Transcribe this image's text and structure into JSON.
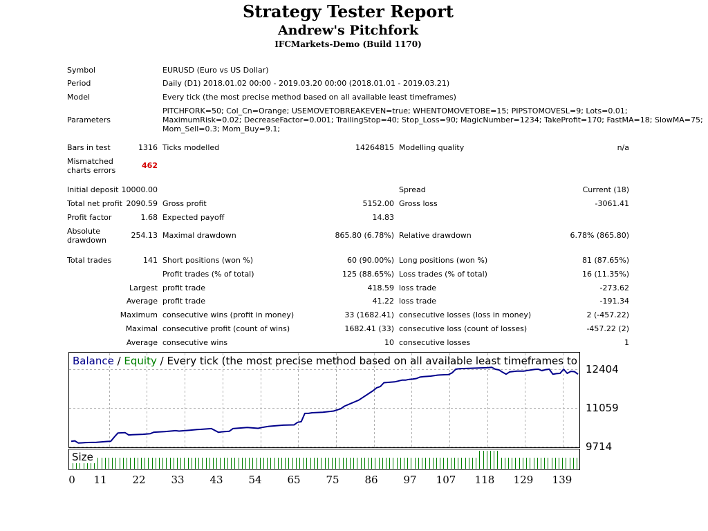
{
  "header": {
    "title": "Strategy Tester Report",
    "subtitle": "Andrew's Pitchfork",
    "server": "IFCMarkets-Demo (Build 1170)"
  },
  "info": {
    "symbol_label": "Symbol",
    "symbol_value": "EURUSD (Euro vs US Dollar)",
    "period_label": "Period",
    "period_value": "Daily (D1) 2018.01.02 00:00 - 2019.03.20 00:00 (2018.01.01 - 2019.03.21)",
    "model_label": "Model",
    "model_value": "Every tick (the most precise method based on all available least timeframes)",
    "parameters_label": "Parameters",
    "parameters_lines": [
      "PITCHFORK=50; Col_Cn=Orange; USEMOVETOBREAKEVEN=true; WHENTOMOVETOBE=15; PIPSTOMOVESL=9; Lots=0.01;",
      "MaximumRisk=0.02; DecreaseFactor=0.001; TrailingStop=40; Stop_Loss=90; MagicNumber=1234; TakeProfit=170; FastMA=18; SlowMA=75;",
      "Mom_Sell=0.3; Mom_Buy=9.1;"
    ]
  },
  "stats": {
    "bars_in_test_label": "Bars in test",
    "bars_in_test": "1316",
    "ticks_modelled_label": "Ticks modelled",
    "ticks_modelled": "14264815",
    "modelling_quality_label": "Modelling quality",
    "modelling_quality": "n/a",
    "mismatched_label_1": "Mismatched",
    "mismatched_label_2": "charts errors",
    "mismatched": "462",
    "initial_deposit_label": "Initial deposit",
    "initial_deposit": "10000.00",
    "spread_label": "Spread",
    "spread": "Current (18)",
    "total_net_profit_label": "Total net profit",
    "total_net_profit": "2090.59",
    "gross_profit_label": "Gross profit",
    "gross_profit": "5152.00",
    "gross_loss_label": "Gross loss",
    "gross_loss": "-3061.41",
    "profit_factor_label": "Profit factor",
    "profit_factor": "1.68",
    "expected_payoff_label": "Expected payoff",
    "expected_payoff": "14.83",
    "absolute_drawdown_label_1": "Absolute",
    "absolute_drawdown_label_2": "drawdown",
    "absolute_drawdown": "254.13",
    "maximal_drawdown_label": "Maximal drawdown",
    "maximal_drawdown": "865.80 (6.78%)",
    "relative_drawdown_label": "Relative drawdown",
    "relative_drawdown": "6.78% (865.80)",
    "total_trades_label": "Total trades",
    "total_trades": "141",
    "short_positions_label": "Short positions (won %)",
    "short_positions": "60 (90.00%)",
    "long_positions_label": "Long positions (won %)",
    "long_positions": "81 (87.65%)",
    "profit_trades_label": "Profit trades (% of total)",
    "profit_trades": "125 (88.65%)",
    "loss_trades_label": "Loss trades (% of total)",
    "loss_trades": "16 (11.35%)",
    "largest_label": "Largest",
    "largest_profit_label": "profit trade",
    "largest_profit": "418.59",
    "largest_loss_label": "loss trade",
    "largest_loss": "-273.62",
    "average_label": "Average",
    "average_profit_label": "profit trade",
    "average_profit": "41.22",
    "average_loss_label": "loss trade",
    "average_loss": "-191.34",
    "maximum_label": "Maximum",
    "max_consec_wins_label": "consecutive wins (profit in money)",
    "max_consec_wins": "33 (1682.41)",
    "max_consec_losses_label": "consecutive losses (loss in money)",
    "max_consec_losses": "2 (-457.22)",
    "maximal_label": "Maximal",
    "maximal_consec_profit_label": "consecutive profit (count of wins)",
    "maximal_consec_profit": "1682.41 (33)",
    "maximal_consec_loss_label": "consecutive loss (count of losses)",
    "maximal_consec_loss": "-457.22 (2)",
    "average2_label": "Average",
    "avg_consec_wins_label": "consecutive wins",
    "avg_consec_wins": "10",
    "avg_consec_losses_label": "consecutive losses",
    "avg_consec_losses": "1"
  },
  "chart_data": {
    "type": "line",
    "legend": {
      "balance": "Balance",
      "sep1": " / ",
      "equity": "Equity",
      "sep2": " / ",
      "rest": "Every tick (the most precise method based on all available least timeframes to generat"
    },
    "size_label": "Size",
    "y_ticks": [
      "12404",
      "11059",
      "9714"
    ],
    "x_ticks": [
      "0",
      "11",
      "22",
      "33",
      "43",
      "54",
      "65",
      "75",
      "86",
      "97",
      "107",
      "118",
      "129",
      "139"
    ],
    "ylim": [
      9714,
      12404
    ],
    "xlim": [
      0,
      141
    ],
    "colors": {
      "balance": "#00008b",
      "equity": "#008000",
      "size": "#008000",
      "grid": "#b0b0b0"
    },
    "series": [
      {
        "name": "Balance",
        "x": [
          0,
          1,
          2,
          3,
          4,
          7,
          10,
          11,
          12,
          13,
          15,
          16,
          17,
          20,
          22,
          23,
          26,
          29,
          30,
          33,
          35,
          36,
          39,
          41,
          42,
          44,
          45,
          49,
          52,
          53,
          55,
          59,
          62,
          63,
          64,
          65,
          66,
          67,
          70,
          73,
          75,
          76,
          80,
          84,
          85,
          86,
          87,
          90,
          92,
          93,
          94,
          95,
          96,
          97,
          98,
          100,
          101,
          102,
          105,
          106,
          107,
          108,
          110,
          112,
          114,
          116,
          117,
          118,
          119,
          120,
          121,
          122,
          124,
          126,
          127,
          128,
          129,
          130,
          131,
          132,
          133,
          134,
          135,
          136,
          137,
          138,
          139,
          140,
          141
        ],
        "y": [
          9900,
          9915,
          9840,
          9845,
          9855,
          9865,
          9895,
          9900,
          10050,
          10190,
          10200,
          10120,
          10130,
          10145,
          10165,
          10215,
          10235,
          10270,
          10255,
          10285,
          10310,
          10315,
          10340,
          10210,
          10230,
          10250,
          10340,
          10380,
          10350,
          10380,
          10420,
          10460,
          10470,
          10560,
          10580,
          10870,
          10870,
          10890,
          10910,
          10950,
          11030,
          11120,
          11330,
          11660,
          11760,
          11800,
          11935,
          11965,
          12025,
          12025,
          12050,
          12060,
          12080,
          12130,
          12145,
          12165,
          12180,
          12200,
          12220,
          12280,
          12404,
          12420,
          12430,
          12440,
          12450,
          12460,
          12470,
          12404,
          12380,
          12300,
          12230,
          12310,
          12340,
          12340,
          12360,
          12380,
          12400,
          12404,
          12350,
          12390,
          12404,
          12230,
          12250,
          12260,
          12404,
          12260,
          12330,
          12320,
          12230
        ]
      }
    ],
    "size_values": [
      1,
      1,
      1,
      1,
      1,
      1,
      1,
      1,
      1,
      1,
      1,
      1,
      1,
      1,
      1,
      1,
      1,
      1,
      1,
      1,
      1,
      1,
      1,
      1,
      1,
      1,
      1,
      1,
      1,
      1,
      1,
      1,
      1,
      1,
      1,
      1,
      1,
      1,
      1,
      1,
      1,
      1,
      1,
      1,
      1,
      1,
      1,
      1,
      1,
      1,
      1,
      1,
      1,
      1,
      1,
      1,
      1,
      1,
      1,
      1,
      1,
      1,
      1,
      1,
      1,
      1,
      1,
      1,
      1,
      1,
      1,
      1,
      1,
      1,
      1,
      1,
      1,
      1,
      1,
      1,
      1,
      1,
      1,
      1,
      1,
      1,
      1,
      1,
      1,
      1,
      1,
      1,
      1,
      1,
      1,
      1,
      1,
      1,
      1,
      1,
      1,
      1,
      1,
      1,
      1,
      1,
      1,
      1,
      1,
      1,
      1,
      1,
      1,
      2,
      2,
      2,
      2,
      2,
      2,
      1,
      1,
      1,
      1,
      1,
      1,
      1,
      1,
      1,
      1,
      1,
      1,
      1,
      1,
      1,
      1,
      1,
      1,
      1,
      1,
      1,
      1
    ]
  }
}
